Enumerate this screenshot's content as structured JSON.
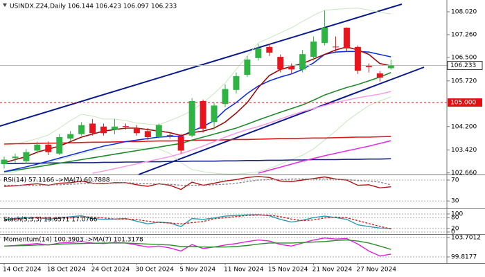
{
  "chart_data": [
    {
      "type": "candlestick",
      "title": "USINDX.Z24,Daily  106.144 106.423 106.097 106.233",
      "categories": [
        "14 Oct 2024",
        null,
        null,
        null,
        "18 Oct 2024",
        null,
        null,
        null,
        "24 Oct 2024",
        null,
        null,
        null,
        "30 Oct 2024",
        null,
        null,
        null,
        "5 Nov 2024",
        null,
        null,
        null,
        "11 Nov 2024",
        null,
        null,
        null,
        "15 Nov 2024",
        null,
        null,
        null,
        "21 Nov 2024",
        null,
        null,
        null,
        "27 Nov 2024",
        null,
        null,
        null
      ],
      "open": [
        102.95,
        103.15,
        103.05,
        103.4,
        103.6,
        103.3,
        103.8,
        103.95,
        104.3,
        104.2,
        104.1,
        104.22,
        104.15,
        104.05,
        103.85,
        103.92,
        103.88,
        103.9,
        105.05,
        104.35,
        104.95,
        105.42,
        105.92,
        106.48,
        106.85,
        106.52,
        106.2,
        106.1,
        106.52,
        106.98,
        106.86,
        107.49,
        106.85,
        106.22,
        105.97,
        106.144
      ],
      "high": [
        103.2,
        103.3,
        103.45,
        103.7,
        103.7,
        103.95,
        104.05,
        104.35,
        104.45,
        104.3,
        104.45,
        104.3,
        104.25,
        104.15,
        104.3,
        104.0,
        103.95,
        105.15,
        105.1,
        105.0,
        105.6,
        106.0,
        106.55,
        106.95,
        106.95,
        106.6,
        106.3,
        106.75,
        107.2,
        108.06,
        107.2,
        107.5,
        106.9,
        106.3,
        106.05,
        106.423
      ],
      "low": [
        102.8,
        103.0,
        102.95,
        103.3,
        103.25,
        103.25,
        103.7,
        103.9,
        103.9,
        103.9,
        103.95,
        104.1,
        103.9,
        103.75,
        103.8,
        103.8,
        103.3,
        103.85,
        104.0,
        104.1,
        104.85,
        105.3,
        105.85,
        106.4,
        106.55,
        106.0,
        105.95,
        106.0,
        106.4,
        106.9,
        106.7,
        106.7,
        105.95,
        106.0,
        105.7,
        106.097
      ],
      "close": [
        103.1,
        103.2,
        103.35,
        103.6,
        103.35,
        103.85,
        103.95,
        104.25,
        103.98,
        103.98,
        104.2,
        104.21,
        103.98,
        103.85,
        104.25,
        103.9,
        103.4,
        105.05,
        104.13,
        104.9,
        105.45,
        105.88,
        106.43,
        106.8,
        106.66,
        106.1,
        106.1,
        106.61,
        107.03,
        107.49,
        106.84,
        106.8,
        106.06,
        106.18,
        105.83,
        106.233
      ],
      "up_color": "#2fb344",
      "down_color": "#e8141e",
      "lines": [
        {
          "color": "#c8e6c0",
          "values": [
            103.57,
            103.62,
            103.7,
            103.8,
            103.92,
            104.15,
            104.4,
            104.61,
            104.55,
            104.45,
            104.45,
            104.4,
            104.32,
            104.28,
            104.26,
            104.4,
            104.55,
            104.73,
            105.0,
            105.3,
            105.65,
            106.1,
            106.55,
            106.98,
            107.15,
            107.32,
            107.49,
            107.7,
            107.9,
            108.07,
            108.1,
            108.13,
            108.14,
            108.08,
            108.0,
            107.95
          ]
        },
        {
          "color": "#c8e6c0",
          "values": [
            102.65,
            102.7,
            102.8,
            102.9,
            103.0,
            103.1,
            103.2,
            103.3,
            103.4,
            103.45,
            103.46,
            103.48,
            103.46,
            103.46,
            103.46,
            103.3,
            103.0,
            102.77,
            102.7,
            102.65,
            102.62,
            102.62,
            102.65,
            102.7,
            102.8,
            102.95,
            103.1,
            103.25,
            103.46,
            103.75,
            104.05,
            104.38,
            104.65,
            104.9,
            105.05,
            105.19
          ]
        },
        {
          "color": "#1a237e",
          "values": [
            102.97,
            102.97,
            102.98,
            102.98,
            102.99,
            102.99,
            103.0,
            103.0,
            103.0,
            103.01,
            103.01,
            103.02,
            103.02,
            103.03,
            103.03,
            103.04,
            103.04,
            103.05,
            103.05,
            103.05,
            103.06,
            103.06,
            103.07,
            103.07,
            103.08,
            103.08,
            103.09,
            103.09,
            103.1,
            103.1,
            103.1,
            103.11,
            103.11,
            103.12,
            103.12,
            103.13
          ]
        },
        {
          "color": "#e01818",
          "values": [
            103.62,
            103.63,
            103.63,
            103.64,
            103.65,
            103.65,
            103.66,
            103.67,
            103.68,
            103.68,
            103.69,
            103.7,
            103.7,
            103.71,
            103.72,
            103.72,
            103.73,
            103.74,
            103.75,
            103.75,
            103.76,
            103.77,
            103.77,
            103.78,
            103.79,
            103.8,
            103.8,
            103.81,
            103.82,
            103.82,
            103.83,
            103.84,
            103.85,
            103.85,
            103.86,
            103.87
          ]
        },
        {
          "color": "#e030e0",
          "values": [
            null,
            null,
            null,
            null,
            null,
            null,
            null,
            null,
            null,
            null,
            null,
            null,
            null,
            null,
            null,
            null,
            null,
            null,
            null,
            null,
            null,
            null,
            null,
            102.65,
            102.75,
            102.85,
            102.95,
            103.05,
            103.14,
            103.23,
            103.31,
            103.39,
            103.47,
            103.55,
            103.64,
            103.73
          ]
        },
        {
          "color": "#f4a0e8",
          "values": [
            null,
            null,
            null,
            null,
            null,
            null,
            null,
            null,
            102.65,
            102.72,
            102.8,
            102.88,
            102.96,
            103.04,
            103.12,
            103.2,
            103.3,
            103.42,
            103.55,
            103.7,
            103.85,
            103.98,
            104.1,
            104.2,
            104.32,
            104.45,
            104.58,
            104.7,
            104.8,
            104.9,
            105.0,
            105.08,
            105.16,
            105.22,
            105.28,
            105.37
          ]
        },
        {
          "color": "#1f8a2a",
          "values": [
            102.7,
            102.75,
            102.8,
            102.86,
            102.92,
            102.98,
            103.04,
            103.1,
            103.16,
            103.22,
            103.28,
            103.34,
            103.4,
            103.46,
            103.52,
            103.58,
            103.64,
            103.75,
            103.85,
            103.95,
            104.05,
            104.15,
            104.28,
            104.42,
            104.55,
            104.68,
            104.8,
            104.92,
            105.08,
            105.25,
            105.38,
            105.5,
            105.6,
            105.72,
            105.85,
            106.0
          ]
        },
        {
          "color": "#1030e0",
          "values": [
            102.7,
            102.78,
            102.86,
            102.95,
            103.05,
            103.15,
            103.25,
            103.35,
            103.45,
            103.55,
            103.62,
            103.7,
            103.75,
            103.8,
            103.85,
            103.87,
            103.88,
            104.05,
            104.2,
            104.4,
            104.75,
            105.0,
            105.3,
            105.55,
            105.72,
            105.85,
            105.95,
            106.1,
            106.32,
            106.6,
            106.68,
            106.7,
            106.7,
            106.68,
            106.6,
            106.52
          ]
        },
        {
          "color": "#9a0c0c",
          "values": [
            103.0,
            103.1,
            103.2,
            103.35,
            103.45,
            103.55,
            103.7,
            103.85,
            103.95,
            104.05,
            104.1,
            104.15,
            104.15,
            104.1,
            104.05,
            104.0,
            103.9,
            104.0,
            104.05,
            104.15,
            104.35,
            104.65,
            105.0,
            105.5,
            105.9,
            106.1,
            106.2,
            106.3,
            106.45,
            106.6,
            106.75,
            106.85,
            106.75,
            106.6,
            106.3,
            106.22
          ]
        }
      ],
      "ylim": [
        102.605,
        108.412
      ],
      "yticks": [
        {
          "value": 108.02,
          "label": "108.020"
        },
        {
          "value": 107.26,
          "label": "107.260"
        },
        {
          "value": 106.5,
          "label": "106.500"
        },
        {
          "value": 105.72,
          "label": "105.720"
        },
        {
          "value": 104.2,
          "label": "104.200"
        },
        {
          "value": 103.42,
          "label": "103.420"
        },
        {
          "value": 102.66,
          "label": "102.660"
        }
      ],
      "current_price": 106.233,
      "level": {
        "value": 105,
        "label": "105.000"
      },
      "level_color": "#e01010"
    },
    {
      "type": "line",
      "title": "RSI(14) 57.1166 ->MA(7) 60.7888",
      "series": [
        {
          "color": "#b01010",
          "values": [
            58,
            59,
            61,
            63,
            60,
            64,
            65,
            68,
            64,
            63,
            65,
            65,
            61,
            58,
            63,
            60,
            52,
            66,
            60,
            64,
            68,
            71,
            75,
            77,
            75,
            68,
            67,
            70,
            73,
            76,
            72,
            70,
            60,
            61,
            55,
            57.1166
          ]
        },
        {
          "color": "#888888",
          "dash": true,
          "values": [
            60,
            60,
            60,
            60,
            61,
            61,
            62,
            63,
            64,
            64,
            64,
            65,
            64,
            63,
            62,
            62,
            60,
            60,
            60,
            61,
            62,
            64,
            67,
            70,
            71,
            71,
            72,
            72,
            72,
            72,
            72,
            71,
            69,
            68,
            66,
            60.7888
          ]
        }
      ],
      "ylim": [
        17,
        78
      ],
      "yticks": [
        70,
        30
      ]
    },
    {
      "type": "line",
      "title": "Stoch(5,3,3) 19.6571 17.0766",
      "series": [
        {
          "color": "#2a9bb0",
          "values": [
            70,
            75,
            80,
            82,
            70,
            78,
            85,
            90,
            75,
            70,
            72,
            75,
            60,
            45,
            55,
            50,
            30,
            75,
            70,
            78,
            88,
            92,
            95,
            96,
            90,
            70,
            55,
            65,
            80,
            88,
            80,
            70,
            40,
            30,
            22,
            19.6571
          ]
        },
        {
          "color": "#d02020",
          "dash": true,
          "values": [
            65,
            70,
            75,
            79,
            77,
            76,
            78,
            84,
            83,
            78,
            72,
            72,
            69,
            60,
            53,
            50,
            45,
            52,
            58,
            74,
            79,
            86,
            92,
            94,
            94,
            85,
            72,
            63,
            67,
            78,
            83,
            79,
            63,
            47,
            31,
            17.0766
          ]
        }
      ],
      "ylim": [
        0,
        100
      ],
      "yticks": [
        100,
        80,
        20,
        0
      ]
    },
    {
      "type": "line",
      "title": "Momentum(14) 100.3903 ->MA(7) 101.3178",
      "series": [
        {
          "color": "#e020d8",
          "values": [
            102.0,
            102.1,
            102.3,
            102.5,
            102.2,
            102.6,
            102.7,
            102.9,
            102.6,
            102.5,
            102.7,
            102.6,
            102.2,
            101.8,
            102.0,
            101.6,
            101.0,
            102.3,
            101.5,
            101.8,
            102.2,
            102.5,
            102.9,
            103.2,
            103.0,
            102.3,
            102.0,
            102.6,
            103.2,
            103.6,
            103.4,
            103.5,
            102.4,
            101.0,
            100.0,
            100.3903
          ]
        },
        {
          "color": "#2e8b2e",
          "values": [
            102.0,
            102.05,
            102.1,
            102.2,
            102.25,
            102.35,
            102.45,
            102.5,
            102.55,
            102.6,
            102.6,
            102.6,
            102.5,
            102.4,
            102.3,
            102.2,
            101.9,
            101.9,
            101.8,
            101.8,
            101.8,
            101.9,
            102.1,
            102.4,
            102.6,
            102.6,
            102.6,
            102.7,
            102.8,
            102.9,
            103.1,
            103.2,
            103.0,
            102.6,
            102.0,
            101.3178
          ]
        }
      ],
      "ylim": [
        99.8177,
        103.7012
      ],
      "yticks": [
        99.8177,
        103.7012
      ]
    }
  ]
}
